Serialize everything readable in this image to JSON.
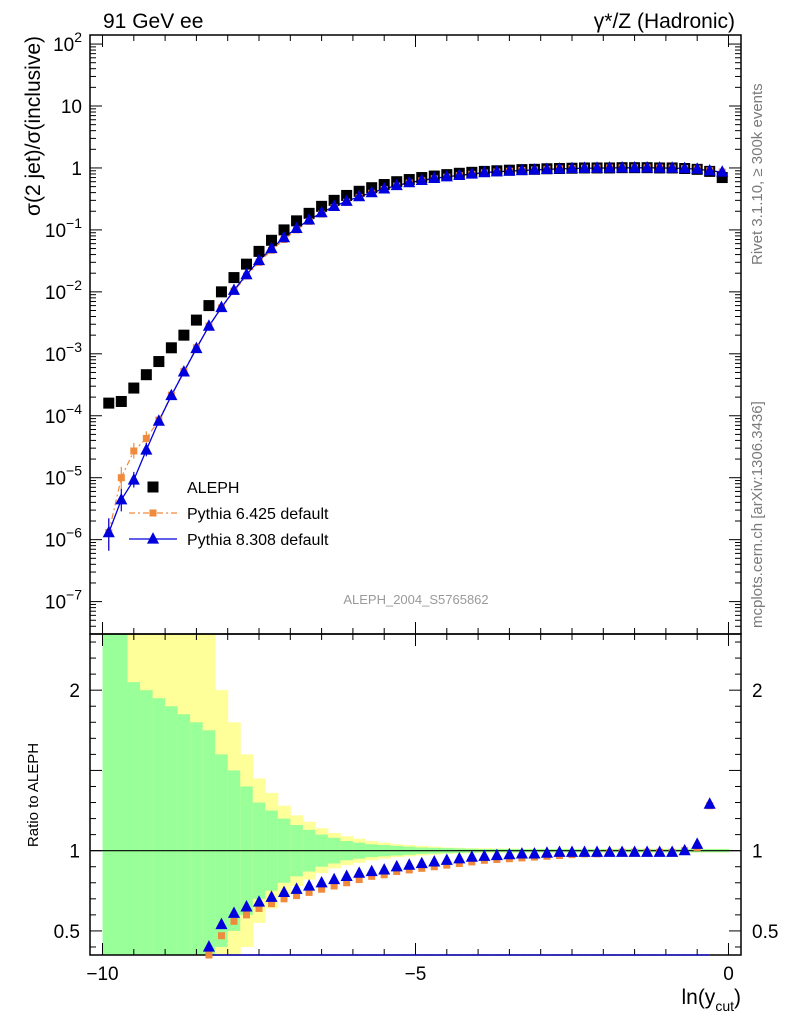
{
  "header": {
    "left": "91 GeV ee",
    "right": "γ*/Z (Hadronic)"
  },
  "side_labels": {
    "rivet": "Rivet 3.1.10, ≥ 300k events",
    "mcplots": "mcplots.cern.ch [arXiv:1306.3436]"
  },
  "analysis_id": "ALEPH_2004_S5765862",
  "colors": {
    "aleph": "#000000",
    "pythia6": "#f08a3c",
    "pythia8": "#0000dd",
    "band_inner": "#99ff99",
    "band_outer": "#ffff99"
  },
  "chart_data": [
    {
      "type": "scatter",
      "panel": "main",
      "ylabel": "σ(2 jet)/σ(inclusive)",
      "yscale": "log",
      "ylim": [
        3e-08,
        140
      ],
      "xlim": [
        -10.2,
        0.2
      ],
      "ytick_labels": [
        "10^-7",
        "10^-6",
        "10^-5",
        "10^-4",
        "10^-3",
        "10^-2",
        "10^-1",
        "1",
        "10",
        "10^2"
      ],
      "legend_position": "bottom-left",
      "x": [
        -9.9,
        -9.7,
        -9.5,
        -9.3,
        -9.1,
        -8.9,
        -8.7,
        -8.5,
        -8.3,
        -8.1,
        -7.9,
        -7.7,
        -7.5,
        -7.3,
        -7.1,
        -6.9,
        -6.7,
        -6.5,
        -6.3,
        -6.1,
        -5.9,
        -5.7,
        -5.5,
        -5.3,
        -5.1,
        -4.9,
        -4.7,
        -4.5,
        -4.3,
        -4.1,
        -3.9,
        -3.7,
        -3.5,
        -3.3,
        -3.1,
        -2.9,
        -2.7,
        -2.5,
        -2.3,
        -2.1,
        -1.9,
        -1.7,
        -1.5,
        -1.3,
        -1.1,
        -0.9,
        -0.7,
        -0.5,
        -0.3,
        -0.1
      ],
      "series": [
        {
          "name": "ALEPH",
          "marker": "square",
          "values": [
            0.00016,
            0.00017,
            0.00028,
            0.00046,
            0.00075,
            0.00125,
            0.002,
            0.0035,
            0.006,
            0.01,
            0.017,
            0.028,
            0.045,
            0.068,
            0.1,
            0.14,
            0.185,
            0.24,
            0.3,
            0.36,
            0.42,
            0.48,
            0.54,
            0.6,
            0.65,
            0.7,
            0.74,
            0.78,
            0.82,
            0.85,
            0.88,
            0.9,
            0.92,
            0.94,
            0.95,
            0.97,
            0.98,
            0.99,
            1.0,
            1.0,
            1.0,
            1.01,
            1.01,
            1.01,
            1.0,
            1.0,
            0.98,
            0.95,
            0.88,
            0.7
          ]
        },
        {
          "name": "Pythia 6.425 default",
          "marker": "square",
          "values": [
            1.3e-06,
            1e-05,
            2.7e-05,
            4.3e-05,
            8.5e-05,
            0.000215,
            0.00052,
            0.00125,
            0.0028,
            0.0055,
            0.0103,
            0.018,
            0.03,
            0.047,
            0.07,
            0.1,
            0.137,
            0.18,
            0.23,
            0.28,
            0.335,
            0.39,
            0.45,
            0.51,
            0.57,
            0.62,
            0.67,
            0.71,
            0.75,
            0.79,
            0.83,
            0.86,
            0.885,
            0.91,
            0.93,
            0.95,
            0.965,
            0.98,
            0.99,
            0.995,
            1.0,
            1.005,
            1.005,
            1.005,
            1.0,
            0.995,
            0.98,
            0.96,
            0.9,
            0.86
          ]
        },
        {
          "name": "Pythia 8.308 default",
          "marker": "triangle",
          "values": [
            1.3e-06,
            4.4e-06,
            9.2e-06,
            2.8e-05,
            8.2e-05,
            0.000212,
            0.00051,
            0.00122,
            0.0028,
            0.0056,
            0.0106,
            0.019,
            0.032,
            0.05,
            0.075,
            0.106,
            0.145,
            0.19,
            0.24,
            0.29,
            0.345,
            0.4,
            0.46,
            0.52,
            0.58,
            0.63,
            0.68,
            0.72,
            0.76,
            0.8,
            0.84,
            0.87,
            0.89,
            0.91,
            0.93,
            0.95,
            0.965,
            0.98,
            0.99,
            0.995,
            1.0,
            1.005,
            1.005,
            1.005,
            1.0,
            0.995,
            0.98,
            0.96,
            0.9,
            0.86
          ]
        }
      ]
    },
    {
      "type": "line",
      "panel": "ratio",
      "ylabel": "Ratio to ALEPH",
      "xlabel": "ln(y_cut)",
      "xlim": [
        -10.2,
        0.2
      ],
      "ylim": [
        0.35,
        2.35
      ],
      "xtick_labels": [
        "−10",
        "−5",
        "0"
      ],
      "ytick_labels": [
        "0.5",
        "1",
        "2"
      ],
      "x": [
        -8.3,
        -8.1,
        -7.9,
        -7.7,
        -7.5,
        -7.3,
        -7.1,
        -6.9,
        -6.7,
        -6.5,
        -6.3,
        -6.1,
        -5.9,
        -5.7,
        -5.5,
        -5.3,
        -5.1,
        -4.9,
        -4.7,
        -4.5,
        -4.3,
        -4.1,
        -3.9,
        -3.7,
        -3.5,
        -3.3,
        -3.1,
        -2.9,
        -2.7,
        -2.5,
        -2.3,
        -2.1,
        -1.9,
        -1.7,
        -1.5,
        -1.3,
        -1.1,
        -0.9,
        -0.7,
        -0.5,
        -0.3
      ],
      "series": [
        {
          "name": "Pythia 6.425 default",
          "values": [
            0.35,
            0.47,
            0.56,
            0.6,
            0.64,
            0.67,
            0.7,
            0.72,
            0.74,
            0.76,
            0.78,
            0.8,
            0.82,
            0.84,
            0.85,
            0.87,
            0.88,
            0.89,
            0.9,
            0.91,
            0.92,
            0.93,
            0.94,
            0.945,
            0.95,
            0.955,
            0.96,
            0.965,
            0.97,
            0.975,
            0.98,
            0.98,
            0.985,
            0.99,
            0.99,
            0.99,
            0.99,
            0.99,
            1.0,
            1.02,
            1.28
          ]
        },
        {
          "name": "Pythia 8.308 default",
          "values": [
            0.4,
            0.54,
            0.61,
            0.65,
            0.68,
            0.71,
            0.74,
            0.76,
            0.78,
            0.8,
            0.82,
            0.84,
            0.86,
            0.87,
            0.88,
            0.9,
            0.91,
            0.92,
            0.93,
            0.94,
            0.95,
            0.96,
            0.965,
            0.97,
            0.975,
            0.98,
            0.98,
            0.985,
            0.99,
            0.99,
            0.99,
            0.99,
            0.99,
            0.99,
            0.99,
            0.99,
            0.99,
            0.99,
            1.0,
            1.04,
            1.29
          ]
        }
      ],
      "bands": {
        "x_edges": [
          -10.0,
          -9.8,
          -9.6,
          -9.4,
          -9.2,
          -9.0,
          -8.8,
          -8.6,
          -8.4,
          -8.2,
          -8.0,
          -7.8,
          -7.6,
          -7.4,
          -7.2,
          -7.0,
          -6.8,
          -6.6,
          -6.4,
          -6.2,
          -6.0,
          -5.8,
          -5.6,
          -5.4,
          -5.2,
          -5.0,
          -4.8,
          -4.6,
          -4.4,
          -4.2,
          -4.0,
          -3.8,
          -3.6,
          -3.4,
          -3.2,
          -3.0,
          -2.8,
          -2.6,
          -2.4,
          -2.2,
          -2.0,
          -1.8,
          -1.6,
          -1.4,
          -1.2,
          -1.0,
          -0.8,
          -0.6,
          -0.4,
          -0.2,
          0.0
        ],
        "inner_half_width": [
          2.2,
          2.2,
          1.05,
          1.0,
          0.95,
          0.9,
          0.85,
          0.8,
          0.75,
          0.6,
          0.5,
          0.4,
          0.3,
          0.25,
          0.2,
          0.16,
          0.13,
          0.1,
          0.08,
          0.06,
          0.05,
          0.04,
          0.035,
          0.03,
          0.025,
          0.02,
          0.018,
          0.016,
          0.014,
          0.012,
          0.01,
          0.01,
          0.01,
          0.01,
          0.01,
          0.01,
          0.01,
          0.01,
          0.01,
          0.01,
          0.01,
          0.01,
          0.01,
          0.01,
          0.01,
          0.01,
          0.01,
          0.01,
          0.01,
          0.01
        ],
        "outer_half_width": [
          2.2,
          2.2,
          2.2,
          2.2,
          2.2,
          2.2,
          2.2,
          1.8,
          1.45,
          1.0,
          0.8,
          0.6,
          0.45,
          0.36,
          0.28,
          0.22,
          0.18,
          0.14,
          0.11,
          0.09,
          0.075,
          0.06,
          0.05,
          0.04,
          0.035,
          0.03,
          0.025,
          0.02,
          0.018,
          0.016,
          0.015,
          0.014,
          0.013,
          0.012,
          0.012,
          0.012,
          0.012,
          0.012,
          0.012,
          0.012,
          0.012,
          0.012,
          0.012,
          0.012,
          0.012,
          0.012,
          0.012,
          0.012,
          0.012,
          0.012
        ]
      }
    }
  ]
}
